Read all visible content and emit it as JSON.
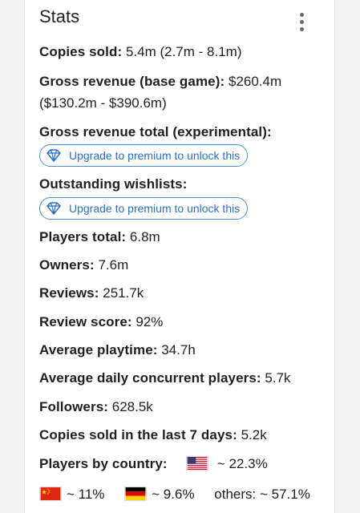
{
  "header": {
    "title": "Stats"
  },
  "stats": {
    "copies_sold": {
      "label": "Copies sold:",
      "value": "5.4m (2.7m - 8.1m)"
    },
    "gross_revenue_base": {
      "label": "Gross revenue (base game):",
      "value": "$260.4m",
      "value_line2": "($130.2m - $390.6m)"
    },
    "gross_revenue_total": {
      "label": "Gross revenue total (experimental):",
      "upgrade": "Upgrade to premium to unlock this"
    },
    "outstanding_wishlists": {
      "label": "Outstanding wishlists:",
      "upgrade": "Upgrade to premium to unlock this"
    },
    "players_total": {
      "label": "Players total:",
      "value": "6.8m"
    },
    "owners": {
      "label": "Owners:",
      "value": "7.6m"
    },
    "reviews": {
      "label": "Reviews:",
      "value": "251.7k"
    },
    "review_score": {
      "label": "Review score:",
      "value": "92%"
    },
    "average_playtime": {
      "label": "Average playtime:",
      "value": "34.7h"
    },
    "avg_daily_ccu": {
      "label": "Average daily concurrent players:",
      "value": "5.7k"
    },
    "followers": {
      "label": "Followers:",
      "value": "628.5k"
    },
    "copies_sold_7d": {
      "label": "Copies sold in the last 7 days:",
      "value": "5.2k"
    },
    "players_by_country": {
      "label": "Players by country:",
      "countries": [
        {
          "flag": "us-flag-icon",
          "value": "~ 22.3%"
        },
        {
          "flag": "cn-flag-icon",
          "value": "~ 11%"
        },
        {
          "flag": "de-flag-icon",
          "value": "~ 9.6%"
        }
      ],
      "others": "others: ~ 57.1%"
    }
  },
  "colors": {
    "accent": "#2b6fc2",
    "accent_border": "#4a90d9",
    "background": "#f2f2f3",
    "card": "#ffffff"
  }
}
